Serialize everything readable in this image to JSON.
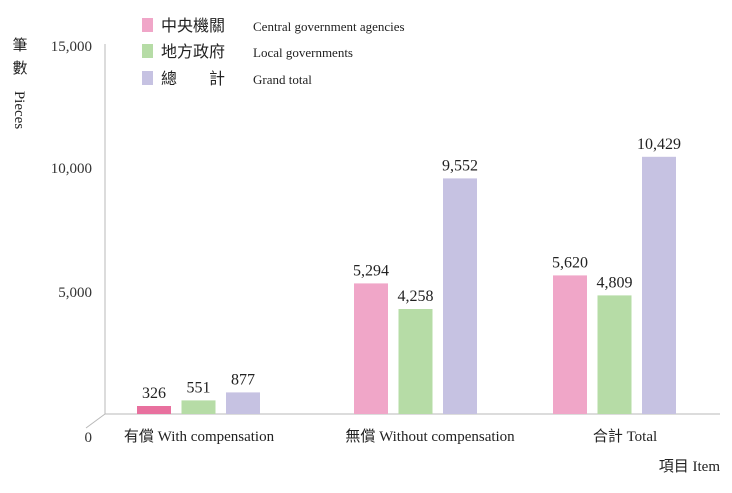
{
  "chart_data": {
    "type": "bar",
    "categories": [
      "有償  With compensation",
      "無償  Without compensation",
      "合計  Total"
    ],
    "series": [
      {
        "name_zh": "中央機關",
        "name_en": "Central government agencies",
        "color": "#f0a6c8",
        "values": [
          326,
          5294,
          5620
        ]
      },
      {
        "name_zh": "地方政府",
        "name_en": "Local governments",
        "color": "#b6dca6",
        "values": [
          551,
          4258,
          4809
        ]
      },
      {
        "name_zh": "總　　計",
        "name_en": "Grand total",
        "color": "#c6c2e2",
        "values": [
          877,
          9552,
          10429
        ]
      }
    ],
    "ylim": [
      0,
      15000
    ],
    "yticks": [
      "0",
      "5,000",
      "10,000",
      "15,000"
    ],
    "data_labels": [
      [
        "326",
        "5,294",
        "5,620"
      ],
      [
        "551",
        "4,258",
        "4,809"
      ],
      [
        "877",
        "9,552",
        "10,429"
      ]
    ],
    "ylabel_zh": [
      "筆",
      "數"
    ],
    "ylabel_en": "Pieces",
    "xlabel": "項目  Item",
    "legend_position": "top-left",
    "highlight_color": "#e8709e"
  }
}
